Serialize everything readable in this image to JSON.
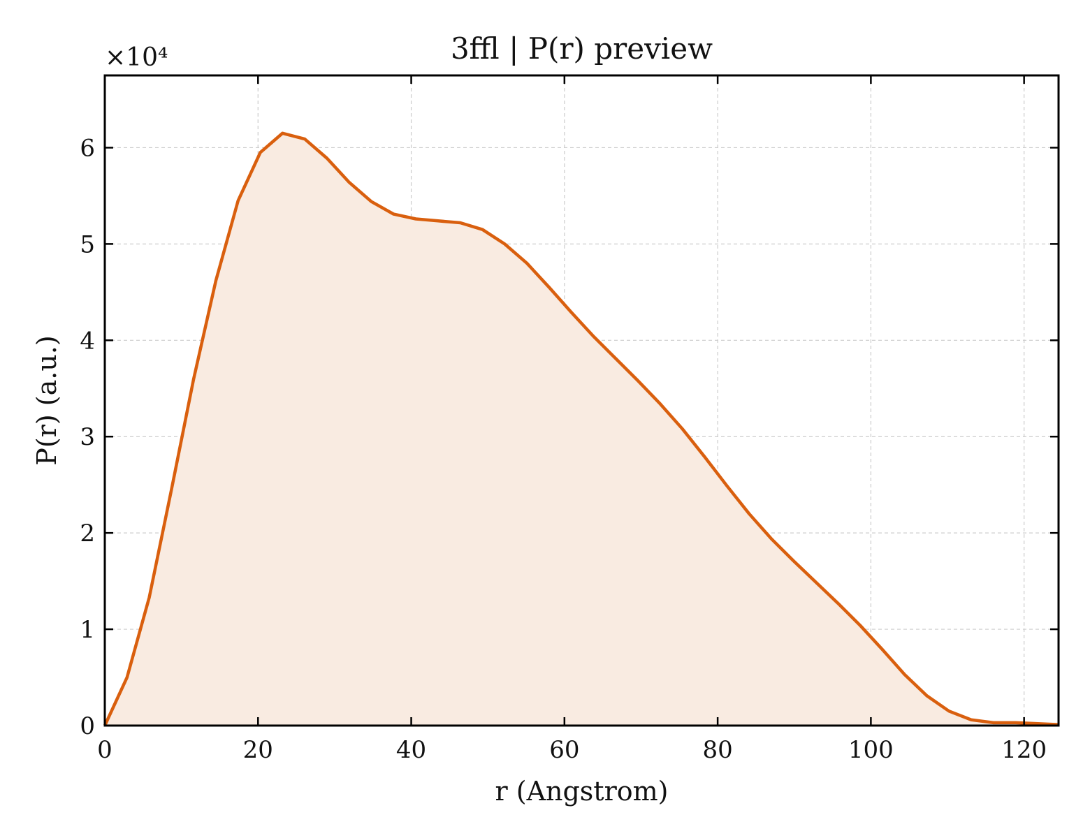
{
  "chart_data": {
    "type": "area",
    "title": "3ffl | P(r) preview",
    "xlabel": "r (Angstrom)",
    "ylabel": "P(r) (a.u.)",
    "y_multiplier": "×10⁴",
    "xlim": [
      0,
      124.5
    ],
    "ylim": [
      0,
      6.75
    ],
    "xticks": [
      0,
      20,
      40,
      60,
      80,
      100,
      120
    ],
    "yticks": [
      0,
      1,
      2,
      3,
      4,
      5,
      6
    ],
    "grid": true,
    "legend": "none",
    "line_color": "#d95f0e",
    "fill_color": "#f9ebe1",
    "series": [
      {
        "x": [
          0,
          2.9,
          5.8,
          8.7,
          11.6,
          14.5,
          17.4,
          20.3,
          23.2,
          26.1,
          29.0,
          31.9,
          34.8,
          37.7,
          40.6,
          43.5,
          46.4,
          49.3,
          52.2,
          55.1,
          58.0,
          60.9,
          63.8,
          66.7,
          69.6,
          72.5,
          75.4,
          78.3,
          81.2,
          84.1,
          87.0,
          89.9,
          92.8,
          95.7,
          98.6,
          101.5,
          104.4,
          107.3,
          110.2,
          113.1,
          116.0,
          118.9,
          121.8,
          124.5
        ],
        "y": [
          0.0,
          0.5,
          1.33,
          2.45,
          3.6,
          4.62,
          5.45,
          5.95,
          6.15,
          6.09,
          5.89,
          5.64,
          5.44,
          5.31,
          5.26,
          5.24,
          5.22,
          5.15,
          5.0,
          4.8,
          4.55,
          4.29,
          4.04,
          3.81,
          3.58,
          3.34,
          3.08,
          2.79,
          2.49,
          2.2,
          1.94,
          1.71,
          1.49,
          1.27,
          1.04,
          0.79,
          0.53,
          0.31,
          0.15,
          0.06,
          0.03,
          0.03,
          0.02,
          0.01
        ]
      }
    ]
  }
}
